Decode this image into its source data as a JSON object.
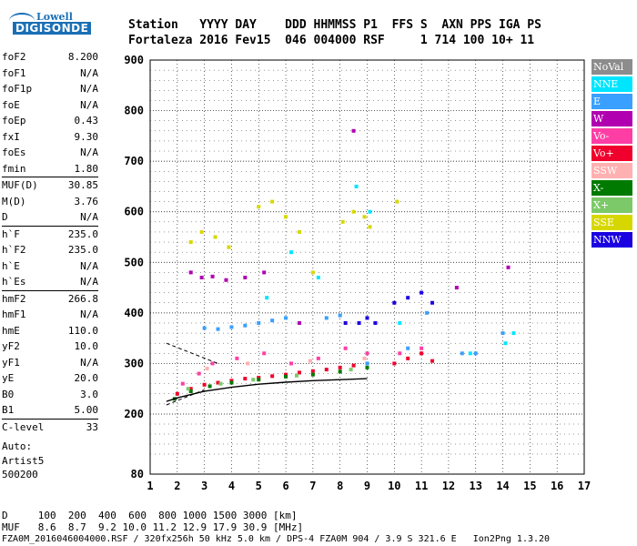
{
  "logo": {
    "line1": "Lowell",
    "line2": "DIGISONDE"
  },
  "header": {
    "line1": "Station   YYYY DAY    DDD HHMMSS P1  FFS S  AXN PPS IGA PS",
    "line2": "Fortaleza 2016 Fev15  046 004000 RSF     1 714 100 10+ 11"
  },
  "params": [
    {
      "group": [
        {
          "name": "foF2",
          "value": "8.200"
        },
        {
          "name": "foF1",
          "value": "N/A"
        },
        {
          "name": "foF1p",
          "value": "N/A"
        },
        {
          "name": "foE",
          "value": "N/A"
        },
        {
          "name": "foEp",
          "value": "0.43"
        },
        {
          "name": "fxI",
          "value": "9.30"
        },
        {
          "name": "foEs",
          "value": "N/A"
        },
        {
          "name": "fmin",
          "value": "1.80"
        }
      ]
    },
    {
      "group": [
        {
          "name": "MUF(D)",
          "value": "30.85"
        },
        {
          "name": "M(D)",
          "value": "3.76"
        },
        {
          "name": "D",
          "value": "N/A"
        }
      ]
    },
    {
      "group": [
        {
          "name": "h`F",
          "value": "235.0"
        },
        {
          "name": "h`F2",
          "value": "235.0"
        },
        {
          "name": "h`E",
          "value": "N/A"
        },
        {
          "name": "h`Es",
          "value": "N/A"
        }
      ]
    },
    {
      "group": [
        {
          "name": "hmF2",
          "value": "266.8"
        },
        {
          "name": "hmF1",
          "value": "N/A"
        },
        {
          "name": "hmE",
          "value": "110.0"
        },
        {
          "name": "yF2",
          "value": "10.0"
        },
        {
          "name": "yF1",
          "value": "N/A"
        },
        {
          "name": "yE",
          "value": "20.0"
        },
        {
          "name": "B0",
          "value": "3.0"
        },
        {
          "name": "B1",
          "value": "5.00"
        }
      ]
    },
    {
      "group": [
        {
          "name": "C-level",
          "value": "33"
        }
      ]
    }
  ],
  "auto": {
    "line1": "Auto:",
    "line2": "Artist5",
    "line3": "500200"
  },
  "footer": {
    "line1": "D     100  200  400  600  800 1000 1500 3000 [km]",
    "line2": "MUF   8.6  8.7  9.2 10.0 11.2 12.9 17.9 30.9 [MHz]",
    "line3": "FZA0M_2016046004000.RSF / 320fx256h 50 kHz 5.0 km / DPS-4 FZA0M 904 / 3.9 S 321.6 E   Ion2Png 1.3.20"
  },
  "legend": [
    {
      "label": "NoVal",
      "color": "#8c8c8c"
    },
    {
      "label": "NNE",
      "color": "#00e5ff"
    },
    {
      "label": "E",
      "color": "#3aa0ff"
    },
    {
      "label": "W",
      "color": "#b000b0"
    },
    {
      "label": "Vo-",
      "color": "#ff3ea5"
    },
    {
      "label": "Vo+",
      "color": "#f0002c"
    },
    {
      "label": "SSW",
      "color": "#ffb0b0"
    },
    {
      "label": "X-",
      "color": "#007a00"
    },
    {
      "label": "X+",
      "color": "#7cc96a"
    },
    {
      "label": "SSE",
      "color": "#d7d700"
    },
    {
      "label": "NNW",
      "color": "#1a00e0"
    }
  ],
  "chart_data": {
    "type": "scatter",
    "xlim": [
      1,
      17
    ],
    "ylim": [
      80,
      900
    ],
    "x_ticks": [
      "1",
      "2",
      "3",
      "4",
      "5",
      "6",
      "7",
      "8",
      "9",
      "10",
      "11",
      "12",
      "13",
      "14",
      "15",
      "16",
      "17"
    ],
    "y_ticks": [
      "80",
      "200",
      "300",
      "400",
      "500",
      "600",
      "700",
      "800",
      "900"
    ],
    "grid": true,
    "legend_position": "right",
    "series": [
      {
        "name": "Vo+",
        "color": "#f0002c",
        "points": [
          [
            2.0,
            240
          ],
          [
            2.5,
            250
          ],
          [
            3.0,
            258
          ],
          [
            3.5,
            262
          ],
          [
            4.0,
            266
          ],
          [
            4.5,
            270
          ],
          [
            5.0,
            272
          ],
          [
            5.5,
            275
          ],
          [
            6.0,
            278
          ],
          [
            6.5,
            282
          ],
          [
            7.0,
            285
          ],
          [
            7.5,
            288
          ],
          [
            8.0,
            292
          ],
          [
            8.5,
            296
          ],
          [
            9.0,
            300
          ],
          [
            10.0,
            300
          ],
          [
            10.5,
            310
          ],
          [
            11.0,
            320
          ],
          [
            11.4,
            305
          ]
        ]
      },
      {
        "name": "Vo-",
        "color": "#ff3ea5",
        "points": [
          [
            2.2,
            260
          ],
          [
            2.8,
            280
          ],
          [
            3.3,
            300
          ],
          [
            4.2,
            310
          ],
          [
            5.2,
            320
          ],
          [
            6.2,
            300
          ],
          [
            7.2,
            310
          ],
          [
            8.2,
            330
          ],
          [
            9.0,
            320
          ],
          [
            10.2,
            320
          ],
          [
            11.0,
            330
          ]
        ]
      },
      {
        "name": "E",
        "color": "#3aa0ff",
        "points": [
          [
            3.0,
            370
          ],
          [
            3.5,
            368
          ],
          [
            4.0,
            372
          ],
          [
            4.5,
            375
          ],
          [
            5.0,
            380
          ],
          [
            5.5,
            385
          ],
          [
            6.0,
            390
          ],
          [
            7.5,
            390
          ],
          [
            8.0,
            395
          ],
          [
            9.0,
            300
          ],
          [
            10.5,
            330
          ],
          [
            11.2,
            400
          ],
          [
            12.5,
            320
          ],
          [
            13.0,
            320
          ],
          [
            14.0,
            360
          ]
        ]
      },
      {
        "name": "NNE",
        "color": "#00e5ff",
        "points": [
          [
            5.3,
            430
          ],
          [
            6.2,
            520
          ],
          [
            7.2,
            470
          ],
          [
            8.6,
            650
          ],
          [
            9.1,
            600
          ],
          [
            10.2,
            380
          ],
          [
            12.8,
            320
          ],
          [
            14.1,
            340
          ],
          [
            14.4,
            360
          ]
        ]
      },
      {
        "name": "W",
        "color": "#b000b0",
        "points": [
          [
            2.5,
            480
          ],
          [
            2.9,
            470
          ],
          [
            3.3,
            472
          ],
          [
            3.8,
            465
          ],
          [
            4.5,
            470
          ],
          [
            5.2,
            480
          ],
          [
            6.5,
            380
          ],
          [
            8.5,
            760
          ],
          [
            12.3,
            450
          ],
          [
            14.2,
            490
          ]
        ]
      },
      {
        "name": "SSE",
        "color": "#d7d700",
        "points": [
          [
            2.5,
            540
          ],
          [
            2.9,
            560
          ],
          [
            3.4,
            550
          ],
          [
            3.9,
            530
          ],
          [
            5.0,
            610
          ],
          [
            5.5,
            620
          ],
          [
            6.0,
            590
          ],
          [
            6.5,
            560
          ],
          [
            7.0,
            480
          ],
          [
            8.1,
            580
          ],
          [
            8.5,
            600
          ],
          [
            8.9,
            590
          ],
          [
            9.1,
            570
          ],
          [
            10.1,
            620
          ]
        ]
      },
      {
        "name": "NNW",
        "color": "#1a00e0",
        "points": [
          [
            8.2,
            380
          ],
          [
            8.7,
            380
          ],
          [
            9.0,
            390
          ],
          [
            9.3,
            380
          ],
          [
            10.0,
            420
          ],
          [
            10.5,
            430
          ],
          [
            11.0,
            440
          ],
          [
            11.4,
            420
          ]
        ]
      },
      {
        "name": "X-",
        "color": "#007a00",
        "points": [
          [
            1.9,
            230
          ],
          [
            2.5,
            245
          ],
          [
            3.2,
            255
          ],
          [
            4.0,
            262
          ],
          [
            5.0,
            268
          ],
          [
            6.0,
            274
          ],
          [
            7.0,
            278
          ],
          [
            8.0,
            284
          ],
          [
            9.0,
            292
          ]
        ]
      },
      {
        "name": "X+",
        "color": "#7cc96a",
        "points": [
          [
            2.4,
            250
          ],
          [
            3.6,
            260
          ],
          [
            4.8,
            268
          ],
          [
            6.4,
            276
          ],
          [
            8.4,
            288
          ]
        ]
      },
      {
        "name": "SSW",
        "color": "#ffb0b0",
        "points": [
          [
            3.1,
            290
          ],
          [
            4.6,
            300
          ],
          [
            6.9,
            305
          ],
          [
            8.9,
            310
          ]
        ]
      }
    ],
    "profile_curve": {
      "color": "#000000",
      "points": [
        [
          1.6,
          225
        ],
        [
          2.0,
          232
        ],
        [
          3.0,
          245
        ],
        [
          4.0,
          253
        ],
        [
          5.0,
          259
        ],
        [
          6.0,
          263
        ],
        [
          7.0,
          266
        ],
        [
          8.0,
          268
        ],
        [
          9.0,
          270
        ]
      ]
    },
    "dashed_lines": [
      {
        "color": "#000000",
        "points": [
          [
            1.6,
            340
          ],
          [
            3.5,
            300
          ]
        ]
      },
      {
        "color": "#000000",
        "points": [
          [
            1.6,
            218
          ],
          [
            3.0,
            248
          ]
        ]
      }
    ]
  }
}
